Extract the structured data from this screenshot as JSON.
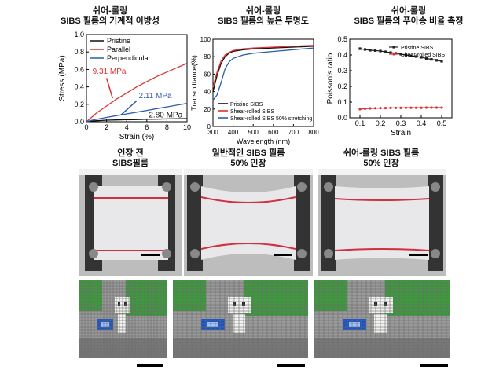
{
  "panels": {
    "a": {
      "title_line1": "쉬어-롤링",
      "title_line2": "SIBS 필름의 기계적 이방성"
    },
    "b": {
      "title_line1": "쉬어-롤링",
      "title_line2": "SIBS 필름의 높은 투명도"
    },
    "c": {
      "title_line1": "쉬어-롤링",
      "title_line2": "SIBS 필름의 푸아송 비율 측정"
    }
  },
  "photos": {
    "p1": {
      "line1": "인장 전",
      "line2": "SIBS필름"
    },
    "p2": {
      "line1": "일반적인 SIBS 필름",
      "line2": "50% 인장"
    },
    "p3": {
      "line1": "쉬어-롤링 SIBS 필름",
      "line2": "50% 인장"
    }
  },
  "chart_data": [
    {
      "type": "line",
      "xlabel": "Strain (%)",
      "ylabel": "Stress (MPa)",
      "xlim": [
        0,
        10
      ],
      "ylim": [
        0,
        1.0
      ],
      "xticks": [
        0,
        2,
        4,
        6,
        8,
        10
      ],
      "yticks": [
        0.0,
        0.2,
        0.4,
        0.6,
        0.8,
        1.0
      ],
      "ytick_labels": [
        "0.0",
        "0.2",
        "0.4",
        "0.6",
        "0.8",
        "1.0"
      ],
      "legend_position": "top-left",
      "series": [
        {
          "name": "Pristine",
          "color": "#111111",
          "x": [
            0,
            0.5,
            1,
            2,
            3,
            4,
            5,
            6,
            7,
            8,
            9,
            10
          ],
          "y": [
            0,
            0.008,
            0.012,
            0.018,
            0.021,
            0.024,
            0.026,
            0.028,
            0.03,
            0.032,
            0.034,
            0.036
          ]
        },
        {
          "name": "Parallel",
          "color": "#e03030",
          "x": [
            0,
            0.5,
            1,
            2,
            3,
            4,
            5,
            6,
            7,
            8,
            9,
            10
          ],
          "y": [
            0,
            0.05,
            0.1,
            0.18,
            0.26,
            0.33,
            0.4,
            0.46,
            0.52,
            0.57,
            0.62,
            0.67
          ]
        },
        {
          "name": "Perpendicular",
          "color": "#2a5db0",
          "x": [
            0,
            0.5,
            1,
            2,
            3,
            4,
            5,
            6,
            7,
            8,
            9,
            10
          ],
          "y": [
            0,
            0.015,
            0.028,
            0.05,
            0.07,
            0.09,
            0.11,
            0.13,
            0.15,
            0.17,
            0.19,
            0.21
          ]
        }
      ],
      "annotations": [
        {
          "text": "9.31 MPa",
          "color": "#e03030",
          "at_x": 2.6,
          "at_y": 0.27
        },
        {
          "text": "2.11 MPa",
          "color": "#2a5db0",
          "at_x": 3.4,
          "at_y": 0.075
        },
        {
          "text": "2.80 MPa",
          "color": "#111111",
          "at_x": 4.2,
          "at_y": 0.024
        }
      ]
    },
    {
      "type": "line",
      "xlabel": "Wavelength (nm)",
      "ylabel": "Transmittance(%)",
      "xlim": [
        300,
        800
      ],
      "ylim": [
        0,
        100
      ],
      "xticks": [
        300,
        400,
        500,
        600,
        700,
        800
      ],
      "yticks": [
        0,
        20,
        40,
        60,
        80,
        100
      ],
      "legend_position": "bottom-left",
      "series": [
        {
          "name": "Pristine SIBS",
          "color": "#111111",
          "x": [
            300,
            320,
            340,
            360,
            380,
            400,
            450,
            500,
            600,
            700,
            800
          ],
          "y": [
            40,
            58,
            72,
            80,
            84,
            86,
            88,
            89,
            90,
            91,
            92
          ]
        },
        {
          "name": "Shear-rolled SIBS",
          "color": "#e03030",
          "x": [
            300,
            320,
            340,
            360,
            380,
            400,
            450,
            500,
            600,
            700,
            800
          ],
          "y": [
            45,
            62,
            75,
            82,
            85,
            87,
            89,
            90,
            91,
            92,
            93
          ]
        },
        {
          "name": "Shear-rolled SIBS 50% stretching",
          "color": "#2a5db0",
          "x": [
            300,
            320,
            340,
            360,
            380,
            400,
            450,
            500,
            600,
            700,
            800
          ],
          "y": [
            30,
            36,
            50,
            66,
            74,
            78,
            82,
            84,
            86,
            88,
            90
          ]
        }
      ]
    },
    {
      "type": "line",
      "xlabel": "Strain",
      "ylabel": "Poisson's ratio",
      "xlim": [
        0.05,
        0.55
      ],
      "ylim": [
        0,
        0.5
      ],
      "xticks": [
        0.1,
        0.2,
        0.3,
        0.4,
        0.5
      ],
      "yticks": [
        0.0,
        0.1,
        0.2,
        0.3,
        0.4,
        0.5
      ],
      "ytick_labels": [
        "0.0",
        "0.1",
        "0.2",
        "0.3",
        "0.4",
        "0.5"
      ],
      "legend_position": "top-right",
      "series": [
        {
          "name": "Pristine SIBS",
          "color": "#222222",
          "marker": "square",
          "x": [
            0.1,
            0.125,
            0.15,
            0.175,
            0.2,
            0.225,
            0.25,
            0.275,
            0.3,
            0.325,
            0.35,
            0.375,
            0.4,
            0.425,
            0.45,
            0.475,
            0.5
          ],
          "y": [
            0.44,
            0.435,
            0.43,
            0.428,
            0.425,
            0.42,
            0.415,
            0.41,
            0.405,
            0.4,
            0.395,
            0.39,
            0.385,
            0.378,
            0.372,
            0.366,
            0.36
          ]
        },
        {
          "name": "Shear-rolled SIBS",
          "color": "#e03030",
          "marker": "circle",
          "x": [
            0.1,
            0.125,
            0.15,
            0.175,
            0.2,
            0.225,
            0.25,
            0.275,
            0.3,
            0.325,
            0.35,
            0.375,
            0.4,
            0.425,
            0.45,
            0.475,
            0.5
          ],
          "y": [
            0.055,
            0.058,
            0.06,
            0.061,
            0.062,
            0.062,
            0.063,
            0.063,
            0.063,
            0.064,
            0.064,
            0.064,
            0.064,
            0.065,
            0.065,
            0.065,
            0.065
          ]
        }
      ]
    }
  ]
}
